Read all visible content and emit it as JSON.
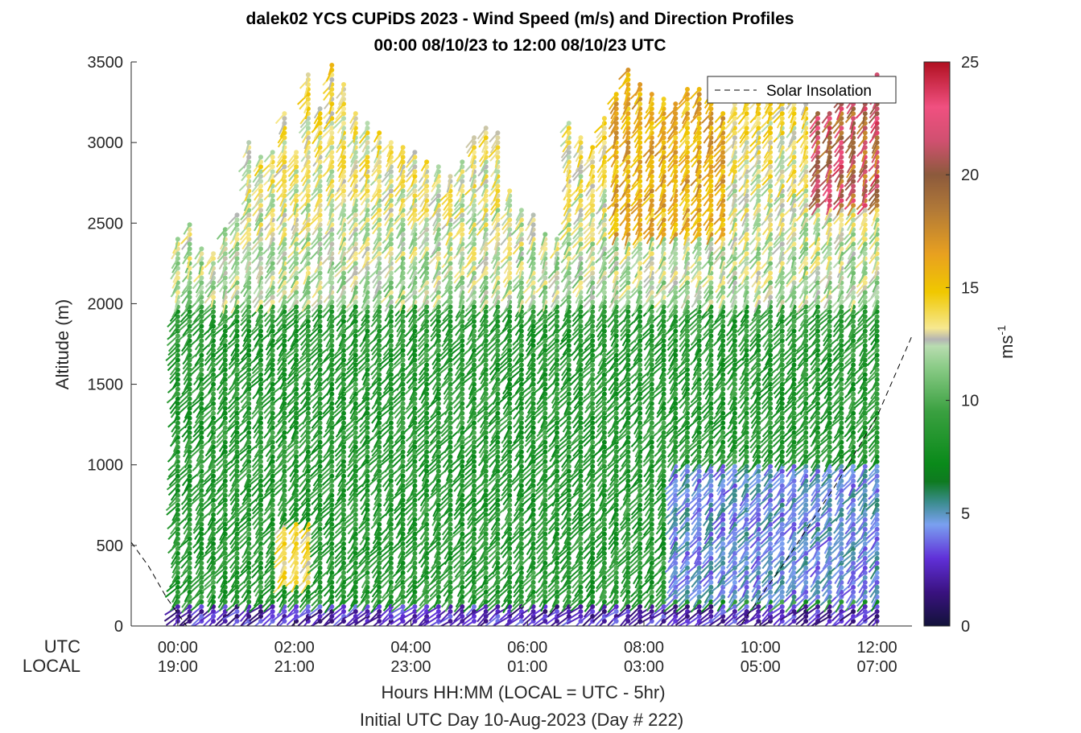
{
  "chart_data": {
    "type": "wind-barb-profile",
    "title_line1": "dalek02 YCS CUPiDS 2023 - Wind Speed (m/s) and Direction Profiles",
    "title_line2": "00:00 08/10/23 to 12:00 08/10/23  UTC",
    "ylabel": "Altitude (m)",
    "xlabel": "Hours HH:MM  (LOCAL = UTC - 5hr)",
    "xlabel2": "Initial UTC Day 10-Aug-2023 (Day # 222)",
    "row_label_utc": "UTC",
    "row_label_local": "LOCAL",
    "ylim": [
      0,
      3500
    ],
    "yticks": [
      "0",
      "500",
      "1000",
      "1500",
      "2000",
      "2500",
      "3000",
      "3500"
    ],
    "xlim_hours": [
      -0.8,
      12.6
    ],
    "xticks": [
      {
        "hour": 0,
        "utc": "00:00",
        "local": "19:00"
      },
      {
        "hour": 2,
        "utc": "02:00",
        "local": "21:00"
      },
      {
        "hour": 4,
        "utc": "04:00",
        "local": "23:00"
      },
      {
        "hour": 6,
        "utc": "06:00",
        "local": "01:00"
      },
      {
        "hour": 8,
        "utc": "08:00",
        "local": "03:00"
      },
      {
        "hour": 10,
        "utc": "10:00",
        "local": "05:00"
      },
      {
        "hour": 12,
        "utc": "12:00",
        "local": "07:00"
      }
    ],
    "legend": {
      "label": "Solar Insolation",
      "placement": "top-right"
    },
    "colorbar": {
      "label": "ms",
      "exponent": "-1",
      "range": [
        0,
        25
      ],
      "ticks": [
        "0",
        "5",
        "10",
        "15",
        "20",
        "25"
      ],
      "stops": [
        {
          "v": 0,
          "c": "#12123a"
        },
        {
          "v": 1.5,
          "c": "#3a1280"
        },
        {
          "v": 3,
          "c": "#6030d8"
        },
        {
          "v": 4.5,
          "c": "#7aa0f0"
        },
        {
          "v": 5.5,
          "c": "#3a8c8c"
        },
        {
          "v": 6.4,
          "c": "#0e7a20"
        },
        {
          "v": 7.2,
          "c": "#0a8a1a"
        },
        {
          "v": 9.5,
          "c": "#3aa040"
        },
        {
          "v": 11.5,
          "c": "#8ccc88"
        },
        {
          "v": 12.4,
          "c": "#b8dcb0"
        },
        {
          "v": 12.7,
          "c": "#b4b4b4"
        },
        {
          "v": 13.2,
          "c": "#f6e890"
        },
        {
          "v": 14.8,
          "c": "#f0c800"
        },
        {
          "v": 16.5,
          "c": "#e8a020"
        },
        {
          "v": 18.5,
          "c": "#b07838"
        },
        {
          "v": 20,
          "c": "#8c5a3c"
        },
        {
          "v": 21.5,
          "c": "#d05070"
        },
        {
          "v": 23,
          "c": "#f05080"
        },
        {
          "v": 25,
          "c": "#b01020"
        }
      ]
    },
    "solar_insolation_curve": [
      {
        "hour": -0.8,
        "alt": 520
      },
      {
        "hour": -0.5,
        "alt": 370
      },
      {
        "hour": -0.2,
        "alt": 180
      },
      {
        "hour": 0.15,
        "alt": 0
      },
      {
        "hour": 9.65,
        "alt": 0
      },
      {
        "hour": 10.5,
        "alt": 440
      },
      {
        "hour": 11.3,
        "alt": 880
      },
      {
        "hour": 12.0,
        "alt": 1300
      },
      {
        "hour": 12.6,
        "alt": 1800
      }
    ],
    "profiles": {
      "hour_start": 0,
      "hour_end": 12,
      "n_profiles": 60,
      "altitude_step_m": 30,
      "top_altitude_m": [
        2420,
        2500,
        2350,
        2330,
        2470,
        2560,
        3000,
        2930,
        2950,
        3200,
        2950,
        3420,
        3220,
        3480,
        3360,
        3180,
        3120,
        3070,
        3010,
        2980,
        2950,
        2880,
        2850,
        2800,
        2900,
        3050,
        3100,
        3080,
        2700,
        2600,
        2550,
        2450,
        2400,
        3130,
        3050,
        2980,
        3150,
        3300,
        3450,
        3380,
        3300,
        3280,
        3250,
        3350,
        3350,
        3320,
        3200,
        3250,
        3300,
        3350,
        3400,
        3350,
        3300,
        3250,
        3200,
        3200,
        3400,
        3300,
        3250,
        3420
      ],
      "speed_regimes": [
        {
          "from_m": 0,
          "to_m": 150,
          "speed_ms": 2.5,
          "direction_deg": 300
        },
        {
          "from_m": 150,
          "to_m": 2000,
          "speed_ms": 8.5,
          "direction_deg": 290
        },
        {
          "from_m": 2000,
          "to_m": 3500,
          "speed_ms": 11.5,
          "direction_deg": 285
        }
      ],
      "late_night_low_level_m": 1000,
      "late_night_speed_ms": 4.5
    }
  }
}
